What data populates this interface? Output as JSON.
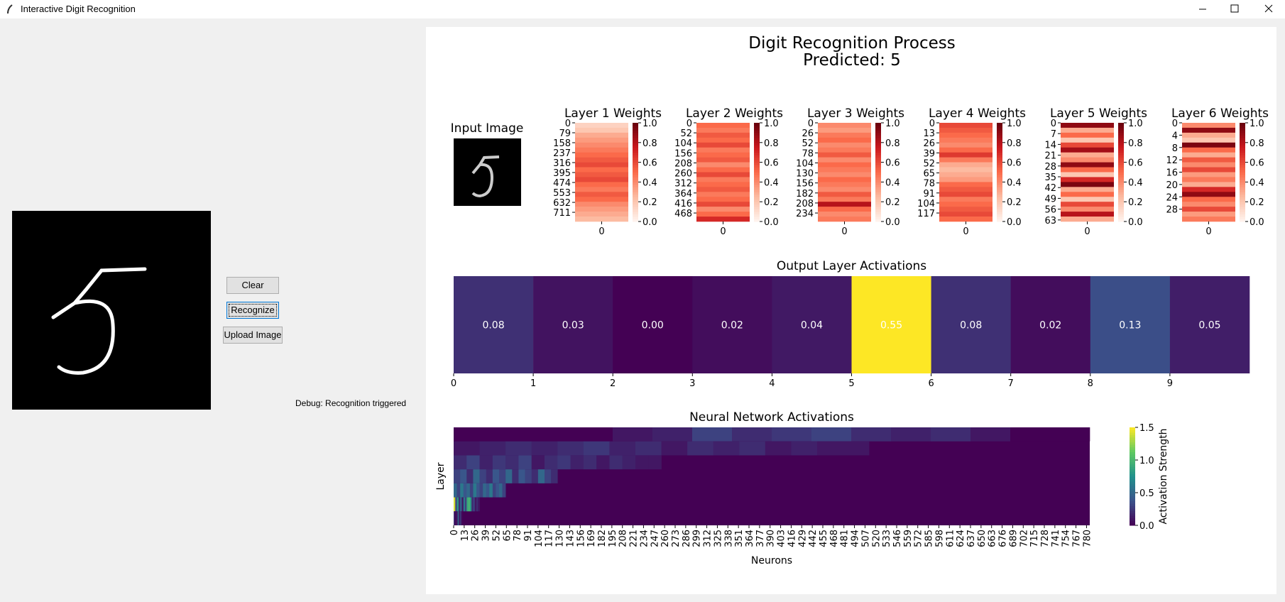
{
  "window": {
    "title": "Interactive Digit Recognition"
  },
  "controls": {
    "buttons": [
      "Clear",
      "Recognize",
      "Upload Image"
    ],
    "debug": "Debug: Recognition triggered"
  },
  "figure": {
    "title": "Digit Recognition Process",
    "subtitle": "Predicted: 5",
    "input_title": "Input Image",
    "weight_colorbar": {
      "ylim": [
        0,
        1
      ],
      "yticks": [
        {
          "value": 0,
          "label": "0.0"
        },
        0.2,
        0.4,
        0.6,
        0.8,
        {
          "value": 1,
          "label": "1.0"
        }
      ]
    }
  },
  "chart_data": [
    {
      "type": "heatmap",
      "title": "Layer 1 Weights",
      "ylim": [
        0,
        784
      ],
      "yticks": [
        0,
        79,
        158,
        237,
        316,
        395,
        474,
        553,
        632,
        711
      ],
      "xticks": [
        0
      ],
      "values": [
        0.15,
        0.2,
        0.3,
        0.35,
        0.4,
        0.45,
        0.5,
        0.55,
        0.6,
        0.5,
        0.55,
        0.6,
        0.5,
        0.45,
        0.55,
        0.5,
        0.4,
        0.35,
        0.3,
        0.25
      ]
    },
    {
      "type": "heatmap",
      "title": "Layer 2 Weights",
      "ylim": [
        0,
        512
      ],
      "yticks": [
        0,
        52,
        104,
        156,
        208,
        260,
        312,
        364,
        416,
        468
      ],
      "xticks": [
        0
      ],
      "values": [
        0.5,
        0.45,
        0.55,
        0.5,
        0.6,
        0.45,
        0.5,
        0.55,
        0.4,
        0.5,
        0.6,
        0.45,
        0.5,
        0.55,
        0.45,
        0.5,
        0.6,
        0.4,
        0.5,
        0.7
      ]
    },
    {
      "type": "heatmap",
      "title": "Layer 3 Weights",
      "ylim": [
        0,
        256
      ],
      "yticks": [
        0,
        26,
        52,
        78,
        104,
        130,
        156,
        182,
        208,
        234
      ],
      "xticks": [
        0
      ],
      "values": [
        0.4,
        0.35,
        0.45,
        0.5,
        0.4,
        0.45,
        0.55,
        0.4,
        0.5,
        0.45,
        0.4,
        0.5,
        0.45,
        0.4,
        0.55,
        0.45,
        0.8,
        0.5,
        0.4,
        0.45
      ]
    },
    {
      "type": "heatmap",
      "title": "Layer 4 Weights",
      "ylim": [
        0,
        128
      ],
      "yticks": [
        0,
        13,
        26,
        39,
        52,
        65,
        78,
        91,
        104,
        117
      ],
      "xticks": [
        0
      ],
      "values": [
        0.6,
        0.55,
        0.5,
        0.45,
        0.4,
        0.5,
        0.65,
        0.45,
        0.3,
        0.25,
        0.3,
        0.35,
        0.5,
        0.55,
        0.6,
        0.45,
        0.5,
        0.55,
        0.6,
        0.5
      ]
    },
    {
      "type": "heatmap",
      "title": "Layer 5 Weights",
      "ylim": [
        0,
        64
      ],
      "yticks": [
        0,
        7,
        14,
        21,
        28,
        35,
        42,
        49,
        56,
        63
      ],
      "xticks": [
        0
      ],
      "values": [
        0.9,
        0.3,
        0.5,
        0.2,
        0.6,
        0.85,
        0.3,
        0.4,
        0.9,
        0.5,
        0.2,
        0.7,
        0.95,
        0.3,
        0.5,
        0.2,
        0.6,
        0.4,
        0.8,
        0.3
      ]
    },
    {
      "type": "heatmap",
      "title": "Layer 6 Weights",
      "ylim": [
        0,
        32
      ],
      "yticks": [
        0,
        4,
        8,
        12,
        16,
        20,
        24,
        28
      ],
      "xticks": [
        0
      ],
      "values": [
        0.4,
        0.9,
        0.3,
        0.2,
        0.95,
        0.5,
        0.3,
        0.55,
        0.4,
        0.6,
        0.35,
        0.45,
        0.3,
        0.7,
        0.9,
        0.5,
        0.4,
        0.6,
        0.35,
        0.45
      ]
    },
    {
      "type": "cells",
      "title": "Output Layer Activations",
      "xlim": [
        0,
        10
      ],
      "xticks": [
        0,
        1,
        2,
        3,
        4,
        5,
        6,
        7,
        8,
        9
      ],
      "values": [
        0.08,
        0.03,
        0.0,
        0.02,
        0.04,
        0.55,
        0.08,
        0.02,
        0.13,
        0.05
      ],
      "value_labels": [
        "0.08",
        "0.03",
        "0.00",
        "0.02",
        "0.04",
        "0.55",
        "0.08",
        "0.02",
        "0.13",
        "0.05"
      ]
    },
    {
      "type": "activations",
      "title": "Neural Network Activations",
      "xlabel": "Neurons",
      "ylabel": "Layer",
      "xlim": [
        0,
        784
      ],
      "xticks": [
        0,
        13,
        26,
        39,
        52,
        65,
        78,
        91,
        104,
        117,
        130,
        143,
        156,
        169,
        182,
        195,
        208,
        221,
        234,
        247,
        260,
        273,
        286,
        299,
        312,
        325,
        338,
        351,
        364,
        377,
        390,
        403,
        416,
        429,
        442,
        455,
        468,
        481,
        494,
        507,
        520,
        533,
        546,
        559,
        572,
        585,
        598,
        611,
        624,
        637,
        650,
        663,
        676,
        689,
        702,
        715,
        728,
        741,
        754,
        767,
        780
      ],
      "sizes": [
        784,
        512,
        256,
        128,
        64,
        32,
        10
      ],
      "rows": [
        [
          0,
          0,
          0,
          0,
          0.1,
          0.15,
          0.3,
          0.2,
          0.25,
          0.3,
          0.2,
          0.15,
          0.2,
          0.1,
          0,
          0
        ],
        [
          0.1,
          0.15,
          0.2,
          0.15,
          0.2,
          0.25,
          0.15,
          0.2,
          0.1,
          0.2,
          0.15,
          0.2,
          0.1,
          0.15,
          0.1,
          0.1
        ],
        [
          0.2,
          0.3,
          0.15,
          0.25,
          0.2,
          0.3,
          0.1,
          0.2,
          0.25,
          0.15,
          0.2,
          0.1,
          0.2,
          0.15,
          0.1,
          0.1
        ],
        [
          0.3,
          0.4,
          0.2,
          0.5,
          0.3,
          0.2,
          0.4,
          0.3,
          0.5,
          0.2,
          0.4,
          0.3,
          0.2,
          0.5,
          0.3,
          0.2
        ],
        [
          0.5,
          0.3,
          0.6,
          0.4,
          0.5,
          0.3,
          0.6,
          0.4,
          0.3,
          0.5,
          0.4,
          0.6,
          0.3,
          0.4,
          0.5,
          0.3
        ],
        [
          1.4,
          0.3,
          0.8,
          0.2,
          0.5,
          0.1,
          0.6,
          0.3,
          0.9,
          1.0,
          0.8,
          0.2,
          0.3,
          0.1,
          0.2,
          0.1
        ],
        [
          0.2,
          0.1,
          0,
          0.1,
          0.1,
          0.6,
          0.2,
          0.1,
          0.3,
          0.1
        ]
      ],
      "colorbar": {
        "label": "Activation Strength",
        "ylim": [
          0,
          1.5
        ],
        "yticks": [
          {
            "value": 0,
            "label": "0.0"
          },
          0.5,
          {
            "value": 1,
            "label": "1.0"
          },
          1.5
        ]
      }
    }
  ]
}
